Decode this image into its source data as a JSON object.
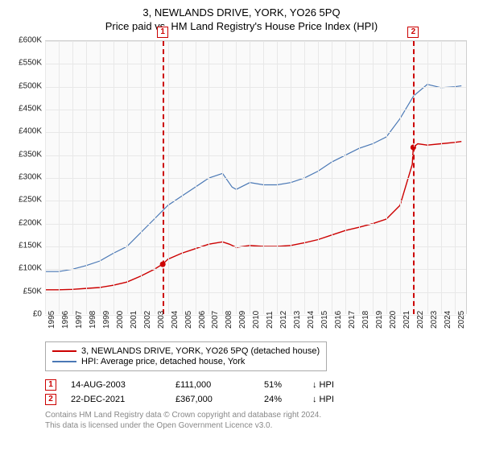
{
  "title": "3, NEWLANDS DRIVE, YORK, YO26 5PQ",
  "subtitle": "Price paid vs. HM Land Registry's House Price Index (HPI)",
  "chart": {
    "type": "line",
    "x_min": 1995,
    "x_max": 2025.9,
    "y_min": 0,
    "y_max": 600000,
    "y_ticks": [
      0,
      50000,
      100000,
      150000,
      200000,
      250000,
      300000,
      350000,
      400000,
      450000,
      500000,
      550000,
      600000
    ],
    "y_labels": [
      "£0",
      "£50K",
      "£100K",
      "£150K",
      "£200K",
      "£250K",
      "£300K",
      "£350K",
      "£400K",
      "£450K",
      "£500K",
      "£550K",
      "£600K"
    ],
    "x_ticks": [
      1995,
      1996,
      1997,
      1998,
      1999,
      2000,
      2001,
      2002,
      2003,
      2004,
      2005,
      2006,
      2007,
      2008,
      2009,
      2010,
      2011,
      2012,
      2013,
      2014,
      2015,
      2016,
      2017,
      2018,
      2019,
      2020,
      2021,
      2022,
      2023,
      2024,
      2025
    ],
    "background_color": "#fafafa",
    "grid_color": "#e8e8e8",
    "series": [
      {
        "name": "property",
        "color": "#cc0000",
        "width": 1.4,
        "points": [
          [
            1995,
            55000
          ],
          [
            1996,
            55000
          ],
          [
            1997,
            56000
          ],
          [
            1998,
            58000
          ],
          [
            1999,
            60000
          ],
          [
            2000,
            65000
          ],
          [
            2001,
            72000
          ],
          [
            2002,
            85000
          ],
          [
            2003,
            100000
          ],
          [
            2003.6,
            111000
          ],
          [
            2004,
            122000
          ],
          [
            2005,
            135000
          ],
          [
            2006,
            145000
          ],
          [
            2007,
            155000
          ],
          [
            2008,
            160000
          ],
          [
            2008.5,
            155000
          ],
          [
            2009,
            148000
          ],
          [
            2010,
            152000
          ],
          [
            2011,
            150000
          ],
          [
            2012,
            150000
          ],
          [
            2013,
            152000
          ],
          [
            2014,
            158000
          ],
          [
            2015,
            165000
          ],
          [
            2016,
            175000
          ],
          [
            2017,
            185000
          ],
          [
            2018,
            192000
          ],
          [
            2019,
            200000
          ],
          [
            2020,
            210000
          ],
          [
            2021,
            240000
          ],
          [
            2021.9,
            330000
          ],
          [
            2021.97,
            367000
          ],
          [
            2022.3,
            375000
          ],
          [
            2023,
            372000
          ],
          [
            2024,
            375000
          ],
          [
            2025,
            378000
          ],
          [
            2025.5,
            380000
          ]
        ]
      },
      {
        "name": "hpi",
        "color": "#4a78b5",
        "width": 1.2,
        "points": [
          [
            1995,
            95000
          ],
          [
            1996,
            95000
          ],
          [
            1997,
            100000
          ],
          [
            1998,
            108000
          ],
          [
            1999,
            118000
          ],
          [
            2000,
            135000
          ],
          [
            2001,
            150000
          ],
          [
            2002,
            180000
          ],
          [
            2003,
            210000
          ],
          [
            2004,
            240000
          ],
          [
            2005,
            260000
          ],
          [
            2006,
            280000
          ],
          [
            2007,
            300000
          ],
          [
            2008,
            310000
          ],
          [
            2008.7,
            280000
          ],
          [
            2009,
            275000
          ],
          [
            2010,
            290000
          ],
          [
            2011,
            285000
          ],
          [
            2012,
            285000
          ],
          [
            2013,
            290000
          ],
          [
            2014,
            300000
          ],
          [
            2015,
            315000
          ],
          [
            2016,
            335000
          ],
          [
            2017,
            350000
          ],
          [
            2018,
            365000
          ],
          [
            2019,
            375000
          ],
          [
            2020,
            390000
          ],
          [
            2021,
            430000
          ],
          [
            2022,
            480000
          ],
          [
            2023,
            505000
          ],
          [
            2024,
            498000
          ],
          [
            2025,
            500000
          ],
          [
            2025.5,
            502000
          ]
        ]
      }
    ],
    "sale_markers": [
      {
        "n": "1",
        "x": 2003.62,
        "y": 111000,
        "color": "#cc0000"
      },
      {
        "n": "2",
        "x": 2021.97,
        "y": 367000,
        "color": "#cc0000"
      }
    ]
  },
  "legend": [
    {
      "color": "#cc0000",
      "label": "3, NEWLANDS DRIVE, YORK, YO26 5PQ (detached house)"
    },
    {
      "color": "#4a78b5",
      "label": "HPI: Average price, detached house, York"
    }
  ],
  "sales": [
    {
      "n": "1",
      "color": "#cc0000",
      "date": "14-AUG-2003",
      "price": "£111,000",
      "pct": "51%",
      "rel": "↓ HPI"
    },
    {
      "n": "2",
      "color": "#cc0000",
      "date": "22-DEC-2021",
      "price": "£367,000",
      "pct": "24%",
      "rel": "↓ HPI"
    }
  ],
  "footer": {
    "l1": "Contains HM Land Registry data © Crown copyright and database right 2024.",
    "l2": "This data is licensed under the Open Government Licence v3.0."
  }
}
